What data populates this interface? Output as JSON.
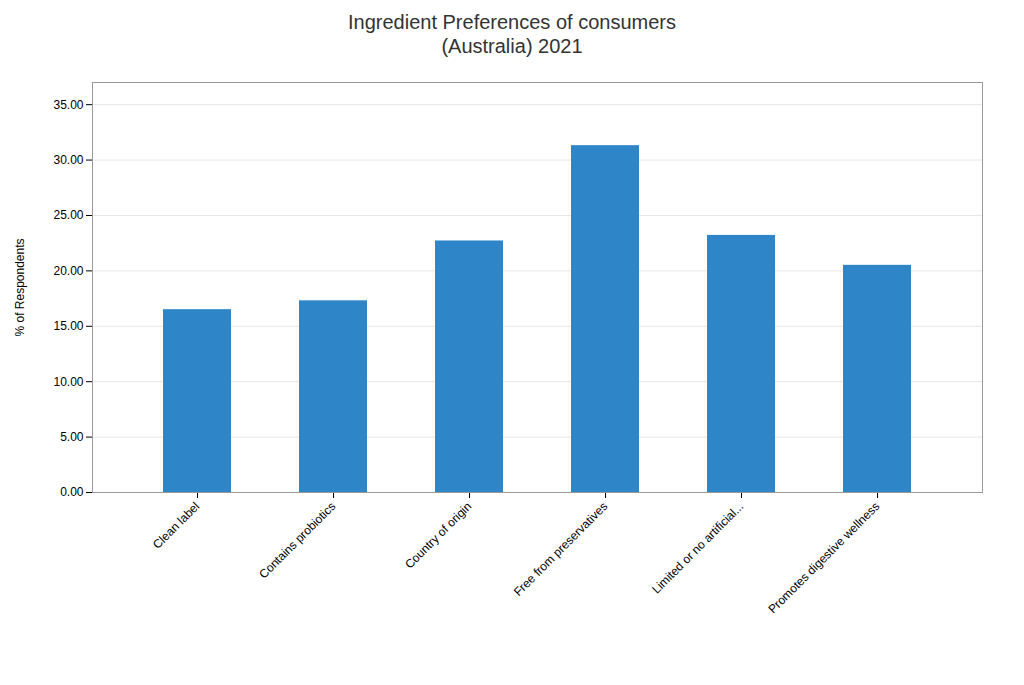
{
  "chart_data": {
    "type": "bar",
    "title": "Ingredient Preferences of consumers\n(Australia) 2021",
    "categories": [
      "Clean label",
      "Contains probiotics",
      "Country of origin",
      "Free from preservatives",
      "Limited or no artificial...",
      "Promotes digestive wellness"
    ],
    "values": [
      16.5,
      17.3,
      22.7,
      31.3,
      23.2,
      20.5
    ],
    "color": "#2E86C8",
    "ylabel": "% of Respondents",
    "ylim": [
      0,
      37
    ],
    "yticks": [
      {
        "value": 0,
        "label": "0.00"
      },
      {
        "value": 5,
        "label": "5.00"
      },
      {
        "value": 10,
        "label": "10.00"
      },
      {
        "value": 15,
        "label": "15.00"
      },
      {
        "value": 20,
        "label": "20.00"
      },
      {
        "value": 25,
        "label": "25.00"
      },
      {
        "value": 30,
        "label": "30.00"
      },
      {
        "value": 35,
        "label": "35.00"
      }
    ],
    "grid": true
  }
}
